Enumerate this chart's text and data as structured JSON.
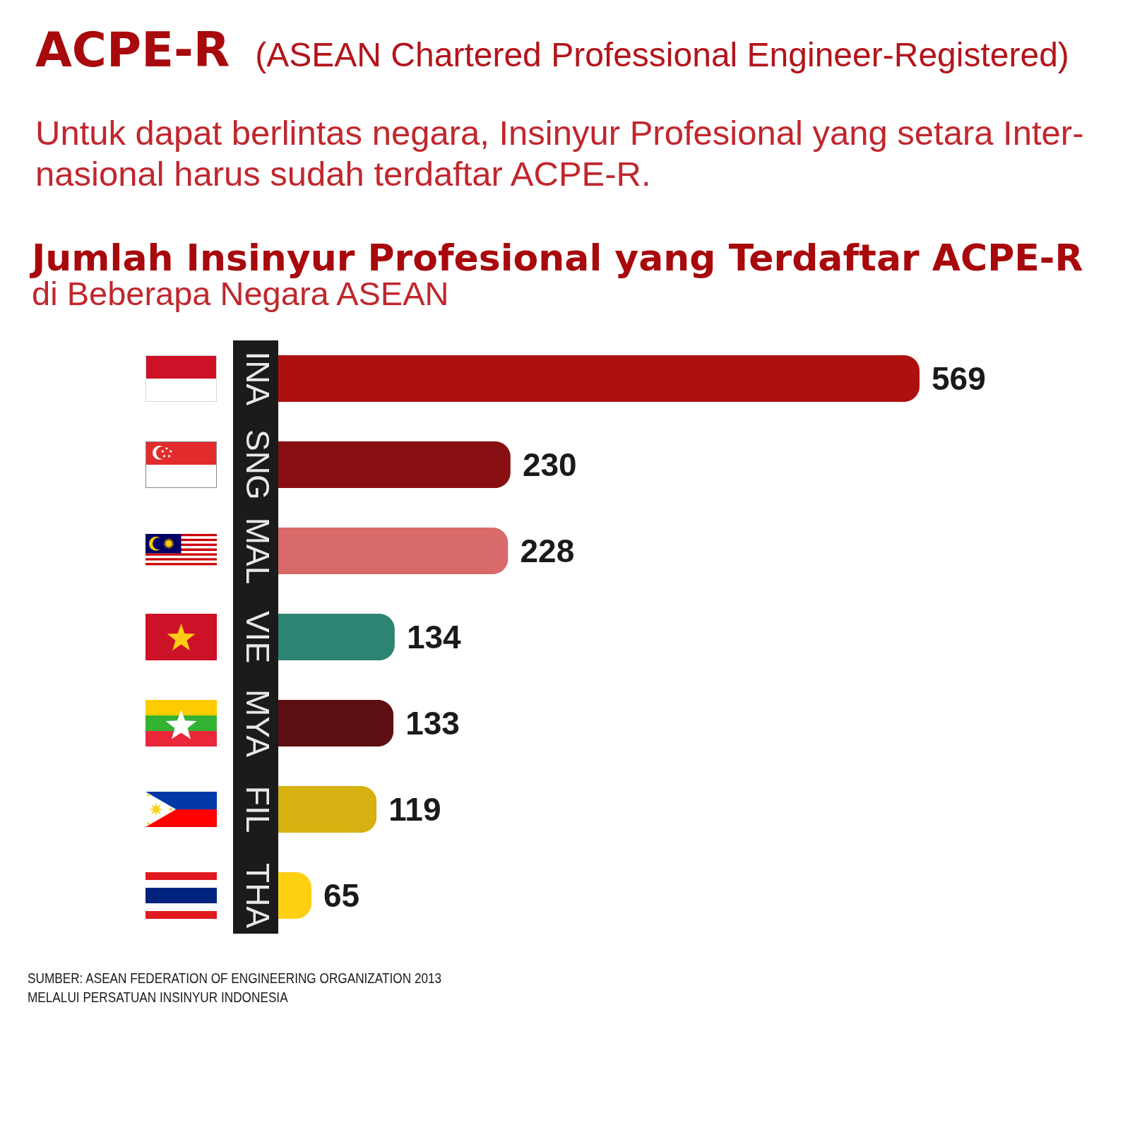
{
  "chart_data": {
    "type": "bar",
    "orientation": "horizontal",
    "title": "Jumlah Insinyur Profesional yang Terdaftar ACPE-R",
    "subtitle": "di Beberapa Negara ASEAN",
    "annotations": [
      "ACPE-R",
      "(ASEAN Chartered Professional Engineer-Registered)",
      "Untuk dapat berlintas negara, Insinyur Profesional yang setara Inter-nasional harus sudah terdaftar ACPE-R.",
      "SUMBER: ASEAN FEDERATION OF ENGINEERING ORGANIZATION 2013",
      "MELALUI PERSATUAN INSINYUR INDONESIA"
    ],
    "categories": [
      "INA",
      "SNG",
      "MAL",
      "VIE",
      "MYA",
      "FIL",
      "THA"
    ],
    "values": [
      569,
      230,
      228,
      134,
      133,
      119,
      65
    ],
    "colors": [
      "#ae1012",
      "#880f11",
      "#d86a69",
      "#2e8472",
      "#5d0f12",
      "#d7b011",
      "#fdd012"
    ],
    "data_labels": true
  }
}
